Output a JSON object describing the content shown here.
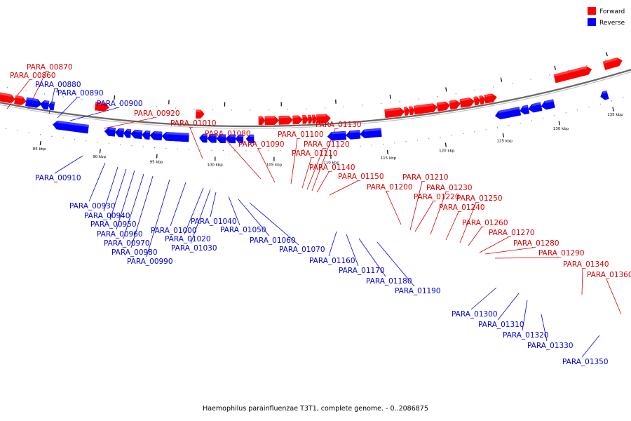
{
  "title": "Haemophilus parainfluenzae T3T1, complete genome. - 0..2086875",
  "legend": [
    {
      "label": "Forward",
      "color": "#ff0000"
    },
    {
      "label": "Reverse",
      "color": "#0000ff"
    }
  ],
  "colors": {
    "forward": "#ff0000",
    "reverse": "#0000ff",
    "backbone": "#666666"
  },
  "scale_ticks": [
    "85 kbp",
    "90 kbp",
    "95 kbp",
    "100 kbp",
    "105 kbp",
    "110 kbp",
    "115 kbp",
    "120 kbp",
    "125 kbp",
    "130 kbp",
    "135 kbp"
  ],
  "genes": [
    {
      "name": "PARA_00860",
      "strand": "forward"
    },
    {
      "name": "PARA_00870",
      "strand": "forward"
    },
    {
      "name": "PARA_00880",
      "strand": "reverse"
    },
    {
      "name": "PARA_00890",
      "strand": "reverse"
    },
    {
      "name": "PARA_00900",
      "strand": "reverse"
    },
    {
      "name": "PARA_00910",
      "strand": "reverse"
    },
    {
      "name": "PARA_00920",
      "strand": "forward"
    },
    {
      "name": "PARA_00930",
      "strand": "reverse"
    },
    {
      "name": "PARA_00940",
      "strand": "reverse"
    },
    {
      "name": "PARA_00950",
      "strand": "reverse"
    },
    {
      "name": "PARA_00960",
      "strand": "reverse"
    },
    {
      "name": "PARA_00970",
      "strand": "reverse"
    },
    {
      "name": "PARA_00980",
      "strand": "reverse"
    },
    {
      "name": "PARA_00990",
      "strand": "reverse"
    },
    {
      "name": "PARA_01000",
      "strand": "reverse"
    },
    {
      "name": "PARA_01010",
      "strand": "forward"
    },
    {
      "name": "PARA_01020",
      "strand": "reverse"
    },
    {
      "name": "PARA_01030",
      "strand": "reverse"
    },
    {
      "name": "PARA_01040",
      "strand": "reverse"
    },
    {
      "name": "PARA_01050",
      "strand": "reverse"
    },
    {
      "name": "PARA_01060",
      "strand": "reverse"
    },
    {
      "name": "PARA_01070",
      "strand": "reverse"
    },
    {
      "name": "PARA_01080",
      "strand": "forward"
    },
    {
      "name": "PARA_01090",
      "strand": "forward"
    },
    {
      "name": "PARA_01100",
      "strand": "forward"
    },
    {
      "name": "PARA_01110",
      "strand": "forward"
    },
    {
      "name": "PARA_01120",
      "strand": "forward"
    },
    {
      "name": "PARA_01130",
      "strand": "forward"
    },
    {
      "name": "PARA_01140",
      "strand": "forward"
    },
    {
      "name": "PARA_01150",
      "strand": "forward"
    },
    {
      "name": "PARA_01160",
      "strand": "reverse"
    },
    {
      "name": "PARA_01170",
      "strand": "reverse"
    },
    {
      "name": "PARA_01180",
      "strand": "reverse"
    },
    {
      "name": "PARA_01190",
      "strand": "reverse"
    },
    {
      "name": "PARA_01200",
      "strand": "forward"
    },
    {
      "name": "PARA_01210",
      "strand": "forward"
    },
    {
      "name": "PARA_01220",
      "strand": "forward"
    },
    {
      "name": "PARA_01230",
      "strand": "forward"
    },
    {
      "name": "PARA_01240",
      "strand": "forward"
    },
    {
      "name": "PARA_01250",
      "strand": "forward"
    },
    {
      "name": "PARA_01260",
      "strand": "forward"
    },
    {
      "name": "PARA_01270",
      "strand": "forward"
    },
    {
      "name": "PARA_01280",
      "strand": "forward"
    },
    {
      "name": "PARA_01290",
      "strand": "forward"
    },
    {
      "name": "PARA_01300",
      "strand": "reverse"
    },
    {
      "name": "PARA_01310",
      "strand": "reverse"
    },
    {
      "name": "PARA_01320",
      "strand": "reverse"
    },
    {
      "name": "PARA_01330",
      "strand": "reverse"
    },
    {
      "name": "PARA_01340",
      "strand": "forward"
    },
    {
      "name": "PARA_01350",
      "strand": "reverse"
    },
    {
      "name": "PARA_01360",
      "strand": "forward"
    }
  ]
}
